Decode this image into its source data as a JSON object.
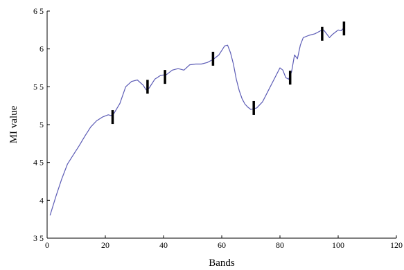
{
  "chart_data": {
    "type": "line",
    "title": "",
    "xlabel": "Bands",
    "ylabel": "MI value",
    "xlim": [
      0,
      120
    ],
    "ylim": [
      3.5,
      6.5
    ],
    "grid": false,
    "xticks": [
      0,
      20,
      40,
      60,
      80,
      100,
      120
    ],
    "yticks": [
      3.5,
      4,
      4.5,
      5,
      5.5,
      6,
      6.5
    ],
    "xtick_labels": [
      "0",
      "20",
      "40",
      "60",
      "80",
      "100",
      "120"
    ],
    "ytick_labels": [
      "3 5",
      "4",
      "4 5",
      "5",
      "5 5",
      "6",
      "6 5"
    ],
    "series": [
      {
        "color": "#5b5bb5",
        "x": [
          1,
          3,
          5,
          7,
          9,
          11,
          13,
          15,
          17,
          19,
          21,
          22,
          23,
          25,
          27,
          29,
          31,
          33,
          34,
          35,
          37,
          39,
          41,
          43,
          45,
          47,
          49,
          51,
          53,
          55,
          57,
          59,
          60,
          61,
          62,
          63,
          64,
          65,
          66,
          67,
          68,
          69,
          70,
          72,
          74,
          76,
          78,
          80,
          81,
          82,
          83,
          84,
          85,
          86,
          87,
          88,
          90,
          92,
          94,
          95,
          96,
          97,
          98,
          99,
          100,
          101,
          102
        ],
        "y": [
          3.8,
          4.05,
          4.28,
          4.48,
          4.6,
          4.72,
          4.85,
          4.97,
          5.05,
          5.1,
          5.13,
          5.12,
          5.15,
          5.28,
          5.5,
          5.57,
          5.59,
          5.52,
          5.46,
          5.48,
          5.6,
          5.65,
          5.66,
          5.72,
          5.74,
          5.72,
          5.79,
          5.8,
          5.8,
          5.82,
          5.86,
          5.92,
          5.98,
          6.04,
          6.05,
          5.95,
          5.8,
          5.6,
          5.45,
          5.34,
          5.27,
          5.23,
          5.2,
          5.22,
          5.3,
          5.45,
          5.6,
          5.75,
          5.72,
          5.62,
          5.6,
          5.7,
          5.92,
          5.87,
          6.05,
          6.15,
          6.18,
          6.2,
          6.24,
          6.25,
          6.2,
          6.15,
          6.19,
          6.22,
          6.25,
          6.24,
          6.28
        ]
      }
    ],
    "markers": {
      "x": [
        22.5,
        34.5,
        40.5,
        57,
        71,
        83.5,
        94.5,
        102
      ],
      "y": [
        5.1,
        5.5,
        5.63,
        5.87,
        5.22,
        5.62,
        6.2,
        6.27
      ]
    }
  }
}
